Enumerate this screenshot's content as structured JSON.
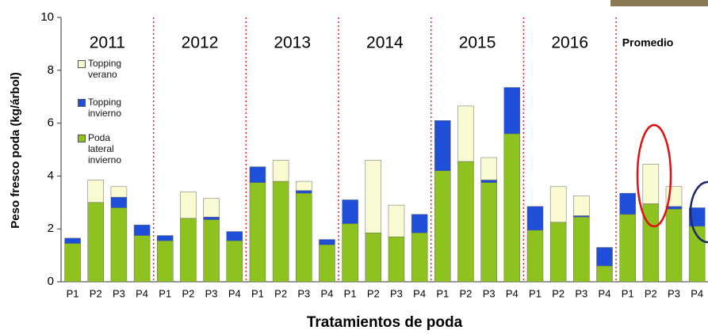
{
  "chart_data": {
    "type": "stacked_bar",
    "y_label": "Peso fresco poda (kg/árbol)",
    "x_label": "Tratamientos de poda",
    "groups": [
      "2011",
      "2012",
      "2013",
      "2014",
      "2015",
      "2016",
      "Promedio"
    ],
    "categories": [
      "P1",
      "P2",
      "P3",
      "P4",
      "P1",
      "P2",
      "P3",
      "P4",
      "P1",
      "P2",
      "P3",
      "P4",
      "P1",
      "P2",
      "P3",
      "P4",
      "P1",
      "P2",
      "P3",
      "P4",
      "P1",
      "P2",
      "P3",
      "P4",
      "P1",
      "P2",
      "P3",
      "P4"
    ],
    "series": [
      {
        "name": "Poda lateral invierno",
        "color": "#8dc21f",
        "values": [
          1.45,
          3.0,
          2.8,
          1.75,
          1.55,
          2.4,
          2.35,
          1.55,
          3.75,
          3.8,
          3.35,
          1.4,
          2.2,
          1.85,
          1.7,
          1.85,
          4.2,
          4.55,
          3.75,
          5.6,
          1.95,
          2.25,
          2.45,
          0.6,
          2.55,
          2.95,
          2.75,
          2.1
        ]
      },
      {
        "name": "Topping invierno",
        "color": "#1f4fd8",
        "values": [
          0.2,
          0,
          0.4,
          0.4,
          0.2,
          0,
          0.1,
          0.35,
          0.6,
          0,
          0.1,
          0.2,
          0.9,
          0,
          0,
          0.7,
          1.9,
          0,
          0.1,
          1.75,
          0.9,
          0,
          0.05,
          0.7,
          0.8,
          0,
          0.1,
          0.7
        ]
      },
      {
        "name": "Topping verano",
        "color": "#fafad2",
        "values": [
          0,
          0.85,
          0.4,
          0,
          0,
          1.0,
          0.7,
          0,
          0,
          0.8,
          0.35,
          0,
          0,
          2.75,
          1.2,
          0,
          0,
          2.1,
          0.85,
          0,
          0,
          1.35,
          0.75,
          0,
          0,
          1.5,
          0.75,
          0
        ]
      }
    ],
    "ylim": [
      0,
      10
    ],
    "yticks": [
      0,
      2,
      4,
      6,
      8,
      10
    ]
  }
}
